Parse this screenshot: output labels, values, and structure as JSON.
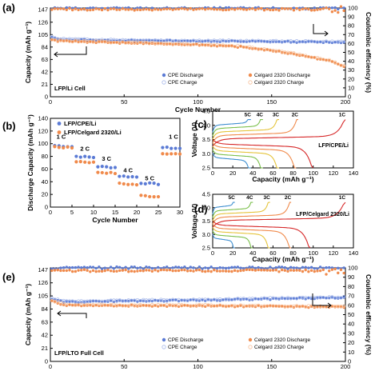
{
  "chart_data": [
    {
      "panel": "(a)",
      "type": "scatter",
      "xlabel": "Cycle Number",
      "ylabel": "Capacity (mAh g⁻¹)",
      "y2label": "Coulombic efficiency (%)",
      "xlim": [
        0,
        200
      ],
      "ylim": [
        0,
        150
      ],
      "y2lim": [
        0,
        100
      ],
      "xticks": [
        0,
        50,
        100,
        150,
        200
      ],
      "yticks": [
        0,
        21,
        42,
        63,
        84,
        105,
        126,
        147
      ],
      "yticklabels": [
        "0",
        "21",
        "42",
        "63",
        "84",
        "105",
        "126",
        "147"
      ],
      "y2ticks": [
        0,
        10,
        20,
        30,
        40,
        50,
        60,
        70,
        80,
        90,
        100
      ],
      "annotation": "LFP/Li Cell",
      "legend": [
        "CPE Discharge",
        "Celgard 2320 Discharge",
        "CPE Charge",
        "Celgard 2320 Charge"
      ],
      "series": [
        {
          "name": "CPE Discharge",
          "axis": "left",
          "color": "#5b7bd5",
          "marker": "filled",
          "x": [
            1,
            5,
            20,
            50,
            100,
            150,
            200
          ],
          "values": [
            100,
            97,
            96,
            95,
            94,
            93,
            92
          ]
        },
        {
          "name": "CPE Charge",
          "axis": "left",
          "color": "#a6b8ea",
          "marker": "open",
          "x": [
            1,
            5,
            20,
            50,
            100,
            150,
            200
          ],
          "values": [
            101,
            98,
            97,
            96,
            95,
            94,
            93
          ]
        },
        {
          "name": "Celgard 2320 Discharge",
          "axis": "left",
          "color": "#f08a4b",
          "marker": "filled",
          "x": [
            1,
            5,
            20,
            50,
            100,
            130,
            150,
            170,
            190,
            200
          ],
          "values": [
            96,
            94,
            93,
            91,
            88,
            84,
            78,
            70,
            60,
            50
          ]
        },
        {
          "name": "Celgard 2320 Charge",
          "axis": "left",
          "color": "#f7c09a",
          "marker": "open",
          "x": [
            1,
            5,
            20,
            50,
            100,
            130,
            150,
            170,
            190,
            200
          ],
          "values": [
            97,
            95,
            94,
            92,
            89,
            85,
            79,
            71,
            61,
            51
          ]
        },
        {
          "name": "CPE CE",
          "axis": "right",
          "color": "#5b7bd5",
          "marker": "filled",
          "x": [
            1,
            200
          ],
          "values": [
            99.5,
            99.5
          ]
        },
        {
          "name": "Celgard 2320 CE",
          "axis": "right",
          "color": "#f08a4b",
          "marker": "filled",
          "x": [
            1,
            185,
            200
          ],
          "values": [
            98.5,
            98.5,
            99
          ]
        }
      ]
    },
    {
      "panel": "(b)",
      "type": "scatter",
      "xlabel": "Cycle Number",
      "ylabel": "Discharge Capacity (mAh g⁻¹)",
      "xlim": [
        0,
        30
      ],
      "ylim": [
        0,
        140
      ],
      "xticks": [
        0,
        5,
        10,
        15,
        20,
        25,
        30
      ],
      "yticks": [
        0,
        20,
        40,
        60,
        80,
        100,
        120,
        140
      ],
      "legend": [
        "LFP/CPE/Li",
        "LFP/Celgard 2320/Li"
      ],
      "rate_labels": [
        {
          "text": "1 C",
          "x": 2.5,
          "y": 108
        },
        {
          "text": "2 C",
          "x": 8,
          "y": 89
        },
        {
          "text": "3 C",
          "x": 13,
          "y": 73
        },
        {
          "text": "4 C",
          "x": 18,
          "y": 55
        },
        {
          "text": "5 C",
          "x": 23,
          "y": 42
        },
        {
          "text": "1 C",
          "x": 28.5,
          "y": 108
        }
      ],
      "series": [
        {
          "name": "LFP/CPE/Li",
          "color": "#5b7bd5",
          "segments": [
            [
              1,
              5,
              97
            ],
            [
              6,
              10,
              80
            ],
            [
              11,
              15,
              64
            ],
            [
              16,
              20,
              49
            ],
            [
              21,
              25,
              38
            ],
            [
              26,
              30,
              94
            ]
          ]
        },
        {
          "name": "LFP/Celgard 2320/Li",
          "color": "#f08a4b",
          "segments": [
            [
              1,
              5,
              95
            ],
            [
              6,
              10,
              72
            ],
            [
              11,
              15,
              55
            ],
            [
              16,
              20,
              37
            ],
            [
              21,
              25,
              18
            ],
            [
              26,
              30,
              85
            ]
          ]
        }
      ]
    },
    {
      "panel": "(c)",
      "type": "line",
      "xlabel": "Capacity (mAh g⁻¹)",
      "ylabel": "Voltage (V)",
      "xlim": [
        0,
        140
      ],
      "ylim": [
        2.5,
        4.5
      ],
      "xticks": [
        0,
        20,
        40,
        60,
        80,
        100,
        120,
        140
      ],
      "yticks": [
        2.5,
        3.0,
        3.5,
        4.0,
        4.5
      ],
      "yticklabels": [
        "2.5",
        "3.0",
        "3.5",
        "4.0",
        "4.5"
      ],
      "annotation": "LFP/CPE/Li",
      "curves": [
        {
          "name": "1C",
          "color": "#d62728",
          "charge_cap": 132,
          "discharge_cap": 100
        },
        {
          "name": "2C",
          "color": "#f08a4b",
          "charge_cap": 85,
          "discharge_cap": 83
        },
        {
          "name": "3C",
          "color": "#e5c43c",
          "charge_cap": 66,
          "discharge_cap": 66
        },
        {
          "name": "4C",
          "color": "#7cc04d",
          "charge_cap": 50,
          "discharge_cap": 50
        },
        {
          "name": "5C",
          "color": "#3f8fd0",
          "charge_cap": 38,
          "discharge_cap": 38
        }
      ]
    },
    {
      "panel": "(d)",
      "type": "line",
      "xlabel": "Capacity (mAh g⁻¹)",
      "ylabel": "Voltage (V)",
      "xlim": [
        0,
        140
      ],
      "ylim": [
        2.5,
        4.5
      ],
      "xticks": [
        0,
        20,
        40,
        60,
        80,
        100,
        120,
        140
      ],
      "yticks": [
        2.5,
        3.0,
        3.5,
        4.0,
        4.5
      ],
      "yticklabels": [
        "2.5",
        "3.0",
        "3.5",
        "4.0",
        "4.5"
      ],
      "annotation": "LFP/Celgard 2320/Li",
      "curves": [
        {
          "name": "1C",
          "color": "#d62728",
          "charge_cap": 132,
          "discharge_cap": 97
        },
        {
          "name": "2C",
          "color": "#f08a4b",
          "charge_cap": 78,
          "discharge_cap": 78
        },
        {
          "name": "3C",
          "color": "#e5c43c",
          "charge_cap": 57,
          "discharge_cap": 57
        },
        {
          "name": "4C",
          "color": "#7cc04d",
          "charge_cap": 40,
          "discharge_cap": 40
        },
        {
          "name": "5C",
          "color": "#3f8fd0",
          "charge_cap": 22,
          "discharge_cap": 22
        }
      ]
    },
    {
      "panel": "(e)",
      "type": "scatter",
      "xlabel": "Cycle Number",
      "ylabel": "Capacity (mAh g⁻¹)",
      "y2label": "Coulombic efficiency (%)",
      "xlim": [
        0,
        200
      ],
      "ylim": [
        0,
        150
      ],
      "y2lim": [
        0,
        100
      ],
      "xticks": [
        0,
        50,
        100,
        150,
        200
      ],
      "yticks": [
        0,
        21,
        42,
        63,
        84,
        105,
        126,
        147
      ],
      "yticklabels": [
        "0",
        "21",
        "42",
        "63",
        "84",
        "105",
        "126",
        "147"
      ],
      "y2ticks": [
        0,
        10,
        20,
        30,
        40,
        50,
        60,
        70,
        80,
        90,
        100
      ],
      "annotation": "LFP/LTO Full Cell",
      "legend": [
        "CPE Discharge",
        "Celgard 2320 Discharge",
        "CPE Charge",
        "Celgard 2320 Charge"
      ],
      "series": [
        {
          "name": "CPE Discharge",
          "axis": "left",
          "color": "#5b7bd5",
          "marker": "filled",
          "x": [
            1,
            10,
            30,
            60,
            100,
            150,
            200
          ],
          "values": [
            100,
            95,
            96,
            97,
            98,
            100,
            102
          ]
        },
        {
          "name": "CPE Charge",
          "axis": "left",
          "color": "#a6b8ea",
          "marker": "open",
          "x": [
            1,
            10,
            30,
            60,
            100,
            150,
            200
          ],
          "values": [
            101,
            96,
            97,
            98,
            99,
            101,
            103
          ]
        },
        {
          "name": "Celgard 2320 Discharge",
          "axis": "left",
          "color": "#f08a4b",
          "marker": "filled",
          "x": [
            1,
            10,
            30,
            60,
            100,
            150,
            200
          ],
          "values": [
            97,
            90,
            90,
            89,
            89,
            88,
            87
          ]
        },
        {
          "name": "Celgard 2320 Charge",
          "axis": "left",
          "color": "#f7c09a",
          "marker": "open",
          "x": [
            1,
            10,
            30,
            60,
            100,
            150,
            200
          ],
          "values": [
            98,
            91,
            91,
            90,
            90,
            89,
            88
          ]
        },
        {
          "name": "CPE CE",
          "axis": "right",
          "color": "#5b7bd5",
          "marker": "filled",
          "x": [
            1,
            200
          ],
          "values": [
            100,
            100
          ]
        },
        {
          "name": "Celgard 2320 CE",
          "axis": "right",
          "color": "#f08a4b",
          "marker": "filled",
          "x": [
            1,
            200
          ],
          "values": [
            97,
            97
          ]
        }
      ]
    }
  ]
}
